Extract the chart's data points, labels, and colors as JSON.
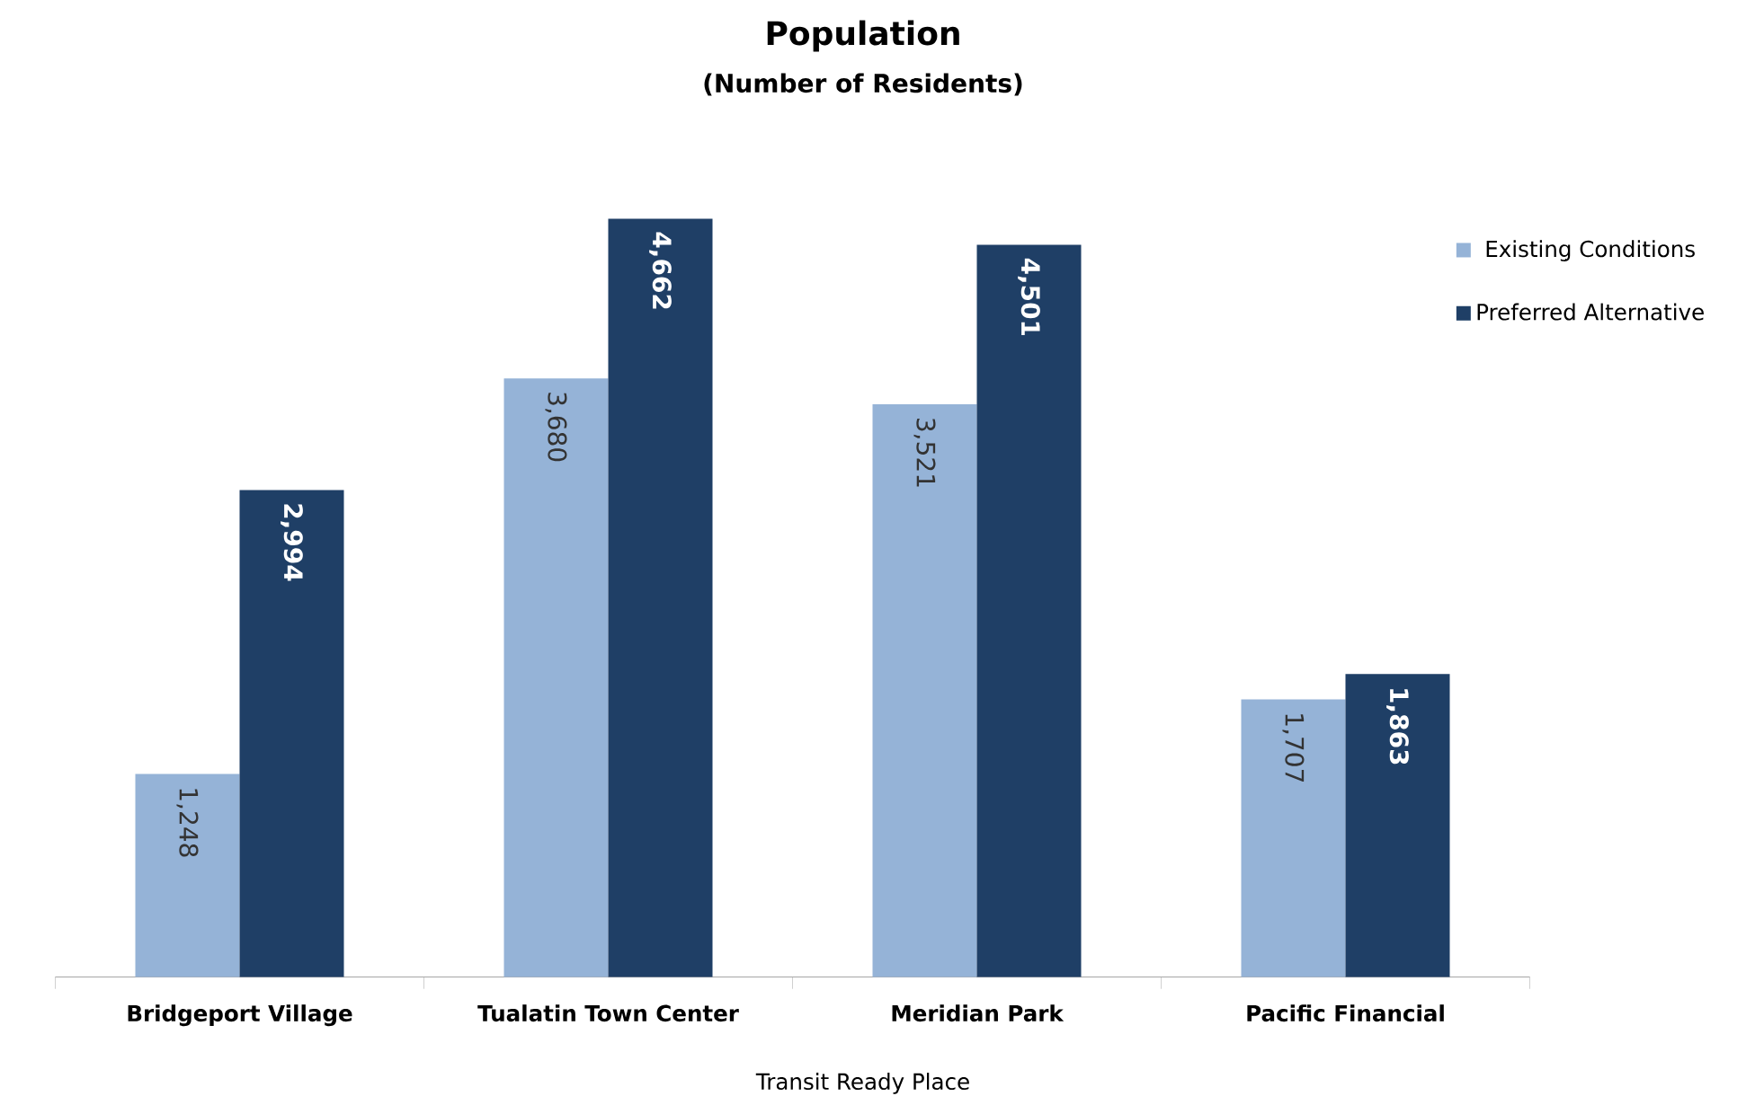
{
  "chart_data": {
    "type": "bar",
    "title": "Population",
    "subtitle": "(Number of Residents)",
    "xlabel": "Transit Ready Place",
    "categories": [
      "Bridgeport Village",
      "Tualatin Town Center",
      "Meridian Park",
      "Pacific Financial"
    ],
    "series": [
      {
        "name": "Existing Conditions",
        "color": "#95b3d7",
        "values": [
          1248,
          3680,
          3521,
          1707
        ],
        "value_labels": [
          "1,248",
          "3,680",
          "3,521",
          "1,707"
        ]
      },
      {
        "name": "Preferred Alternative",
        "color": "#1f3f66",
        "values": [
          2994,
          4662,
          4501,
          1863
        ],
        "value_labels": [
          "2,994",
          "4,662",
          "4,501",
          "1,863"
        ]
      }
    ],
    "data_labels": true,
    "legend": "top right",
    "tick_labels": "x"
  }
}
